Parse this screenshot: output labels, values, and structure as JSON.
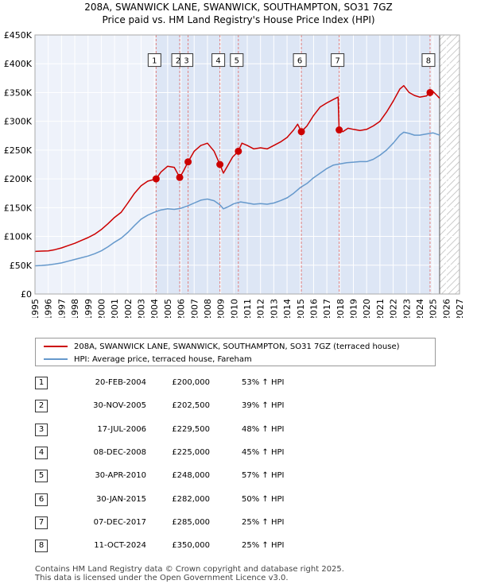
{
  "chart_data": {
    "type": "line",
    "title": "208A, SWANWICK LANE, SWANWICK, SOUTHAMPTON, SO31 7GZ",
    "subtitle": "Price paid vs. HM Land Registry's House Price Index (HPI)",
    "xlim": [
      1995,
      2027
    ],
    "ylim": [
      0,
      450000
    ],
    "x_ticks": [
      1995,
      1996,
      1997,
      1998,
      1999,
      2000,
      2001,
      2002,
      2003,
      2004,
      2005,
      2006,
      2007,
      2008,
      2009,
      2010,
      2011,
      2012,
      2013,
      2014,
      2015,
      2016,
      2017,
      2018,
      2019,
      2020,
      2021,
      2022,
      2023,
      2024,
      2025,
      2026,
      2027
    ],
    "y_ticks": [
      {
        "value": 0,
        "label": "£0"
      },
      {
        "value": 50000,
        "label": "£50K"
      },
      {
        "value": 100000,
        "label": "£100K"
      },
      {
        "value": 150000,
        "label": "£150K"
      },
      {
        "value": 200000,
        "label": "£200K"
      },
      {
        "value": 250000,
        "label": "£250K"
      },
      {
        "value": 300000,
        "label": "£300K"
      },
      {
        "value": 350000,
        "label": "£350K"
      },
      {
        "value": 400000,
        "label": "£400K"
      },
      {
        "value": 450000,
        "label": "£450K"
      }
    ],
    "forecast_start": 2025.5,
    "colors": {
      "property": "#cc0000",
      "hpi": "#6699cc",
      "vline": "#e08080",
      "shade": "#dde6f5"
    },
    "series": [
      {
        "name": "208A, SWANWICK LANE, SWANWICK, SOUTHAMPTON, SO31 7GZ (terraced house)",
        "color": "#cc0000",
        "points": [
          [
            1995.0,
            74000
          ],
          [
            1995.5,
            74500
          ],
          [
            1996.0,
            75000
          ],
          [
            1996.5,
            77000
          ],
          [
            1997.0,
            80000
          ],
          [
            1997.5,
            84000
          ],
          [
            1998.0,
            88000
          ],
          [
            1998.5,
            93000
          ],
          [
            1999.0,
            98000
          ],
          [
            1999.5,
            104000
          ],
          [
            2000.0,
            112000
          ],
          [
            2000.5,
            122000
          ],
          [
            2001.0,
            133000
          ],
          [
            2001.5,
            142000
          ],
          [
            2002.0,
            158000
          ],
          [
            2002.5,
            175000
          ],
          [
            2003.0,
            188000
          ],
          [
            2003.5,
            196000
          ],
          [
            2004.13,
            200000
          ],
          [
            2004.5,
            212000
          ],
          [
            2005.0,
            222000
          ],
          [
            2005.5,
            220000
          ],
          [
            2005.91,
            202500
          ],
          [
            2006.2,
            214000
          ],
          [
            2006.54,
            229500
          ],
          [
            2007.0,
            248000
          ],
          [
            2007.5,
            258000
          ],
          [
            2008.0,
            262000
          ],
          [
            2008.5,
            248000
          ],
          [
            2008.94,
            225000
          ],
          [
            2009.2,
            210000
          ],
          [
            2009.5,
            222000
          ],
          [
            2009.9,
            238000
          ],
          [
            2010.33,
            248000
          ],
          [
            2010.6,
            262000
          ],
          [
            2011.0,
            258000
          ],
          [
            2011.5,
            252000
          ],
          [
            2012.0,
            254000
          ],
          [
            2012.5,
            252000
          ],
          [
            2013.0,
            258000
          ],
          [
            2013.5,
            264000
          ],
          [
            2014.0,
            272000
          ],
          [
            2014.5,
            285000
          ],
          [
            2014.8,
            295000
          ],
          [
            2015.08,
            282000
          ],
          [
            2015.5,
            292000
          ],
          [
            2016.0,
            310000
          ],
          [
            2016.5,
            325000
          ],
          [
            2017.0,
            332000
          ],
          [
            2017.5,
            338000
          ],
          [
            2017.85,
            342000
          ],
          [
            2017.93,
            285000
          ],
          [
            2018.2,
            282000
          ],
          [
            2018.6,
            288000
          ],
          [
            2019.0,
            286000
          ],
          [
            2019.5,
            284000
          ],
          [
            2020.0,
            286000
          ],
          [
            2020.5,
            292000
          ],
          [
            2021.0,
            300000
          ],
          [
            2021.5,
            316000
          ],
          [
            2022.0,
            335000
          ],
          [
            2022.5,
            356000
          ],
          [
            2022.8,
            362000
          ],
          [
            2023.2,
            350000
          ],
          [
            2023.6,
            345000
          ],
          [
            2024.0,
            342000
          ],
          [
            2024.5,
            344000
          ],
          [
            2024.78,
            350000
          ],
          [
            2025.0,
            352000
          ],
          [
            2025.3,
            345000
          ],
          [
            2025.5,
            340000
          ]
        ]
      },
      {
        "name": "HPI: Average price, terraced house, Fareham",
        "color": "#6699cc",
        "points": [
          [
            1995.0,
            49000
          ],
          [
            1995.5,
            49500
          ],
          [
            1996.0,
            50500
          ],
          [
            1996.5,
            52000
          ],
          [
            1997.0,
            54000
          ],
          [
            1997.5,
            57000
          ],
          [
            1998.0,
            60000
          ],
          [
            1998.5,
            63000
          ],
          [
            1999.0,
            66000
          ],
          [
            1999.5,
            70000
          ],
          [
            2000.0,
            75000
          ],
          [
            2000.5,
            82000
          ],
          [
            2001.0,
            90000
          ],
          [
            2001.5,
            97000
          ],
          [
            2002.0,
            107000
          ],
          [
            2002.5,
            119000
          ],
          [
            2003.0,
            130000
          ],
          [
            2003.5,
            137000
          ],
          [
            2004.0,
            142000
          ],
          [
            2004.5,
            146000
          ],
          [
            2005.0,
            148000
          ],
          [
            2005.5,
            147000
          ],
          [
            2006.0,
            149000
          ],
          [
            2006.5,
            153000
          ],
          [
            2007.0,
            158000
          ],
          [
            2007.5,
            163000
          ],
          [
            2008.0,
            165000
          ],
          [
            2008.5,
            162000
          ],
          [
            2008.94,
            155000
          ],
          [
            2009.2,
            148000
          ],
          [
            2009.6,
            152000
          ],
          [
            2010.0,
            157000
          ],
          [
            2010.5,
            160000
          ],
          [
            2011.0,
            158000
          ],
          [
            2011.5,
            156000
          ],
          [
            2012.0,
            157000
          ],
          [
            2012.5,
            156000
          ],
          [
            2013.0,
            158000
          ],
          [
            2013.5,
            162000
          ],
          [
            2014.0,
            167000
          ],
          [
            2014.5,
            175000
          ],
          [
            2015.0,
            185000
          ],
          [
            2015.5,
            192000
          ],
          [
            2016.0,
            202000
          ],
          [
            2016.5,
            210000
          ],
          [
            2017.0,
            218000
          ],
          [
            2017.5,
            224000
          ],
          [
            2018.0,
            226000
          ],
          [
            2018.5,
            228000
          ],
          [
            2019.0,
            229000
          ],
          [
            2019.5,
            230000
          ],
          [
            2020.0,
            230000
          ],
          [
            2020.5,
            234000
          ],
          [
            2021.0,
            241000
          ],
          [
            2021.5,
            250000
          ],
          [
            2022.0,
            262000
          ],
          [
            2022.5,
            276000
          ],
          [
            2022.8,
            281000
          ],
          [
            2023.2,
            279000
          ],
          [
            2023.6,
            276000
          ],
          [
            2024.0,
            276000
          ],
          [
            2024.5,
            278000
          ],
          [
            2025.0,
            280000
          ],
          [
            2025.5,
            276000
          ]
        ]
      }
    ],
    "sales": [
      {
        "num": "1",
        "x": 2004.13,
        "price": 200000,
        "date": "20-FEB-2004",
        "price_label": "£200,000",
        "hpi": "53% ↑ HPI"
      },
      {
        "num": "2",
        "x": 2005.91,
        "price": 202500,
        "date": "30-NOV-2005",
        "price_label": "£202,500",
        "hpi": "39% ↑ HPI"
      },
      {
        "num": "3",
        "x": 2006.54,
        "price": 229500,
        "date": "17-JUL-2006",
        "price_label": "£229,500",
        "hpi": "48% ↑ HPI"
      },
      {
        "num": "4",
        "x": 2008.94,
        "price": 225000,
        "date": "08-DEC-2008",
        "price_label": "£225,000",
        "hpi": "45% ↑ HPI"
      },
      {
        "num": "5",
        "x": 2010.33,
        "price": 248000,
        "date": "30-APR-2010",
        "price_label": "£248,000",
        "hpi": "57% ↑ HPI"
      },
      {
        "num": "6",
        "x": 2015.08,
        "price": 282000,
        "date": "30-JAN-2015",
        "price_label": "£282,000",
        "hpi": "50% ↑ HPI"
      },
      {
        "num": "7",
        "x": 2017.93,
        "price": 285000,
        "date": "07-DEC-2017",
        "price_label": "£285,000",
        "hpi": "25% ↑ HPI"
      },
      {
        "num": "8",
        "x": 2024.78,
        "price": 350000,
        "date": "11-OCT-2024",
        "price_label": "£350,000",
        "hpi": "25% ↑ HPI"
      }
    ]
  },
  "legend": {
    "property_label": "208A, SWANWICK LANE, SWANWICK, SOUTHAMPTON, SO31 7GZ (terraced house)",
    "hpi_label": "HPI: Average price, terraced house, Fareham"
  },
  "footer": {
    "line1": "Contains HM Land Registry data © Crown copyright and database right 2025.",
    "line2": "This data is licensed under the Open Government Licence v3.0."
  }
}
